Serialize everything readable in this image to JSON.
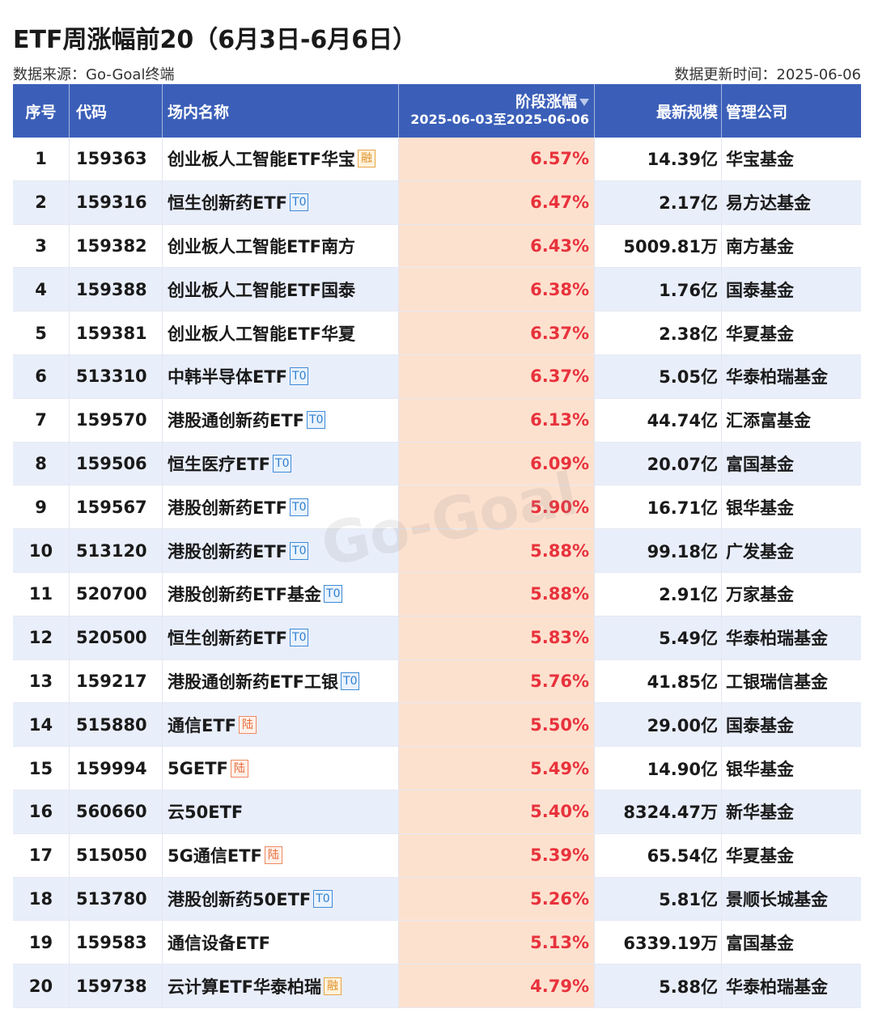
{
  "title": "ETF周涨幅前20（6月3日-6月6日）",
  "source_label": "数据来源：Go-Goal终端",
  "update_label": "数据更新时间：2025-06-06",
  "watermark": "Go-Goal",
  "headers": {
    "index": "序号",
    "code": "代码",
    "name": "场内名称",
    "change": "阶段涨幅",
    "change_period": "2025-06-03至2025-06-06",
    "scale": "最新规模",
    "company": "管理公司"
  },
  "colors": {
    "header_bg": "#3b5fb8",
    "row_alt_bg": "#e9eefb",
    "change_col_bg": "#fde1cf",
    "change_text": "#e8323c"
  },
  "badge_types": {
    "rong": "融",
    "t0": "T0",
    "lu": "陆"
  },
  "rows": [
    {
      "idx": "1",
      "code": "159363",
      "name": "创业板人工智能ETF华宝",
      "badge": "融",
      "badge_type": "rong",
      "change": "6.57%",
      "scale": "14.39亿",
      "company": "华宝基金"
    },
    {
      "idx": "2",
      "code": "159316",
      "name": "恒生创新药ETF",
      "badge": "T0",
      "badge_type": "t0",
      "change": "6.47%",
      "scale": "2.17亿",
      "company": "易方达基金"
    },
    {
      "idx": "3",
      "code": "159382",
      "name": "创业板人工智能ETF南方",
      "badge": "",
      "badge_type": "",
      "change": "6.43%",
      "scale": "5009.81万",
      "company": "南方基金"
    },
    {
      "idx": "4",
      "code": "159388",
      "name": "创业板人工智能ETF国泰",
      "badge": "",
      "badge_type": "",
      "change": "6.38%",
      "scale": "1.76亿",
      "company": "国泰基金"
    },
    {
      "idx": "5",
      "code": "159381",
      "name": "创业板人工智能ETF华夏",
      "badge": "",
      "badge_type": "",
      "change": "6.37%",
      "scale": "2.38亿",
      "company": "华夏基金"
    },
    {
      "idx": "6",
      "code": "513310",
      "name": "中韩半导体ETF",
      "badge": "T0",
      "badge_type": "t0",
      "change": "6.37%",
      "scale": "5.05亿",
      "company": "华泰柏瑞基金"
    },
    {
      "idx": "7",
      "code": "159570",
      "name": "港股通创新药ETF",
      "badge": "T0",
      "badge_type": "t0",
      "change": "6.13%",
      "scale": "44.74亿",
      "company": "汇添富基金"
    },
    {
      "idx": "8",
      "code": "159506",
      "name": "恒生医疗ETF",
      "badge": "T0",
      "badge_type": "t0",
      "change": "6.09%",
      "scale": "20.07亿",
      "company": "富国基金"
    },
    {
      "idx": "9",
      "code": "159567",
      "name": "港股创新药ETF",
      "badge": "T0",
      "badge_type": "t0",
      "change": "5.90%",
      "scale": "16.71亿",
      "company": "银华基金"
    },
    {
      "idx": "10",
      "code": "513120",
      "name": "港股创新药ETF",
      "badge": "T0",
      "badge_type": "t0",
      "change": "5.88%",
      "scale": "99.18亿",
      "company": "广发基金"
    },
    {
      "idx": "11",
      "code": "520700",
      "name": "港股创新药ETF基金",
      "badge": "T0",
      "badge_type": "t0",
      "change": "5.88%",
      "scale": "2.91亿",
      "company": "万家基金"
    },
    {
      "idx": "12",
      "code": "520500",
      "name": "恒生创新药ETF",
      "badge": "T0",
      "badge_type": "t0",
      "change": "5.83%",
      "scale": "5.49亿",
      "company": "华泰柏瑞基金"
    },
    {
      "idx": "13",
      "code": "159217",
      "name": "港股通创新药ETF工银",
      "badge": "T0",
      "badge_type": "t0",
      "change": "5.76%",
      "scale": "41.85亿",
      "company": "工银瑞信基金"
    },
    {
      "idx": "14",
      "code": "515880",
      "name": "通信ETF",
      "badge": "陆",
      "badge_type": "lu",
      "change": "5.50%",
      "scale": "29.00亿",
      "company": "国泰基金"
    },
    {
      "idx": "15",
      "code": "159994",
      "name": "5GETF",
      "badge": "陆",
      "badge_type": "lu",
      "change": "5.49%",
      "scale": "14.90亿",
      "company": "银华基金"
    },
    {
      "idx": "16",
      "code": "560660",
      "name": "云50ETF",
      "badge": "",
      "badge_type": "",
      "change": "5.40%",
      "scale": "8324.47万",
      "company": "新华基金"
    },
    {
      "idx": "17",
      "code": "515050",
      "name": "5G通信ETF",
      "badge": "陆",
      "badge_type": "lu",
      "change": "5.39%",
      "scale": "65.54亿",
      "company": "华夏基金"
    },
    {
      "idx": "18",
      "code": "513780",
      "name": "港股创新药50ETF",
      "badge": "T0",
      "badge_type": "t0",
      "change": "5.26%",
      "scale": "5.81亿",
      "company": "景顺长城基金"
    },
    {
      "idx": "19",
      "code": "159583",
      "name": "通信设备ETF",
      "badge": "",
      "badge_type": "",
      "change": "5.13%",
      "scale": "6339.19万",
      "company": "富国基金"
    },
    {
      "idx": "20",
      "code": "159738",
      "name": "云计算ETF华泰柏瑞",
      "badge": "融",
      "badge_type": "rong",
      "change": "4.79%",
      "scale": "5.88亿",
      "company": "华泰柏瑞基金"
    }
  ]
}
